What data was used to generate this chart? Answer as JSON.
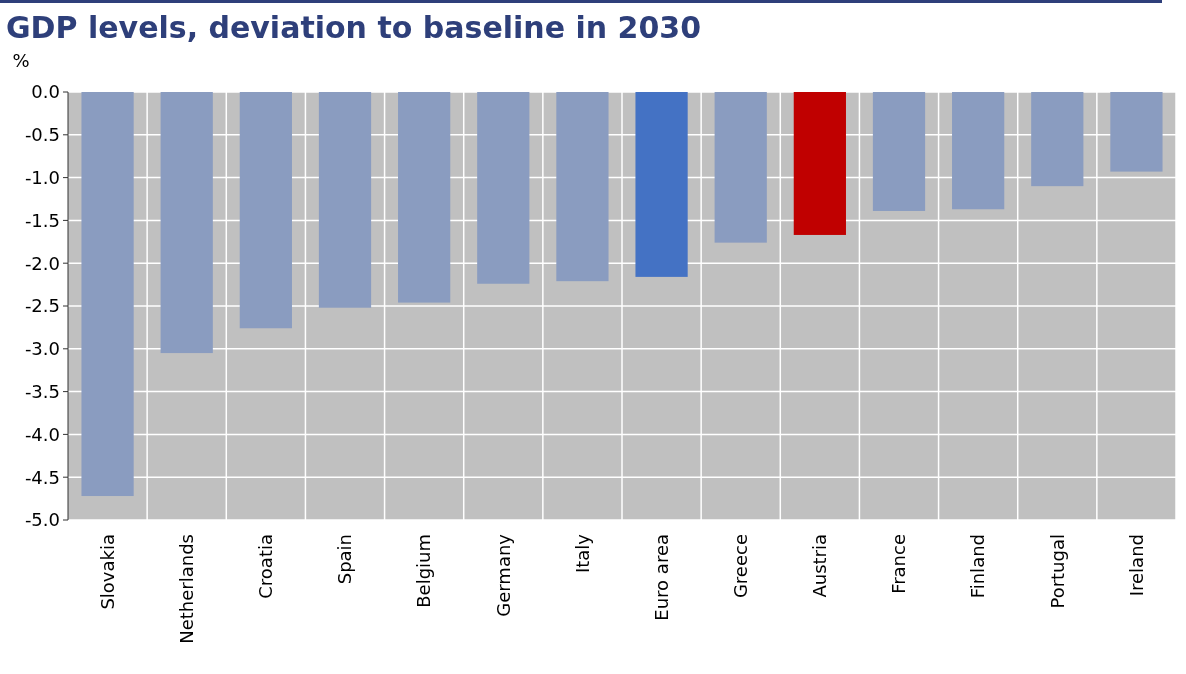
{
  "chart_data": {
    "type": "bar",
    "title": "GDP levels, deviation to baseline in 2030",
    "ylabel": "%",
    "categories": [
      "Slovakia",
      "Netherlands",
      "Croatia",
      "Spain",
      "Belgium",
      "Germany",
      "Italy",
      "Euro area",
      "Greece",
      "Austria",
      "France",
      "Finland",
      "Portugal",
      "Ireland"
    ],
    "values": [
      -4.72,
      -3.05,
      -2.76,
      -2.52,
      -2.46,
      -2.24,
      -2.21,
      -2.16,
      -1.76,
      -1.67,
      -1.39,
      -1.37,
      -1.1,
      -0.93
    ],
    "colors": [
      "#8a9cc0",
      "#8a9cc0",
      "#8a9cc0",
      "#8a9cc0",
      "#8a9cc0",
      "#8a9cc0",
      "#8a9cc0",
      "#4472c4",
      "#8a9cc0",
      "#c00000",
      "#8a9cc0",
      "#8a9cc0",
      "#8a9cc0",
      "#8a9cc0"
    ],
    "ylim": [
      -5,
      0
    ],
    "yticks": [
      {
        "value": 0,
        "label": "0.0"
      },
      {
        "value": -0.5,
        "label": "-0.5"
      },
      {
        "value": -1,
        "label": "-1.0"
      },
      {
        "value": -1.5,
        "label": "-1.5"
      },
      {
        "value": -2,
        "label": "-2.0"
      },
      {
        "value": -2.5,
        "label": "-2.5"
      },
      {
        "value": -3,
        "label": "-3.0"
      },
      {
        "value": -3.5,
        "label": "-3.5"
      },
      {
        "value": -4,
        "label": "-4.0"
      },
      {
        "value": -4.5,
        "label": "-4.5"
      },
      {
        "value": -5,
        "label": "-5.0"
      }
    ],
    "grid": true
  }
}
